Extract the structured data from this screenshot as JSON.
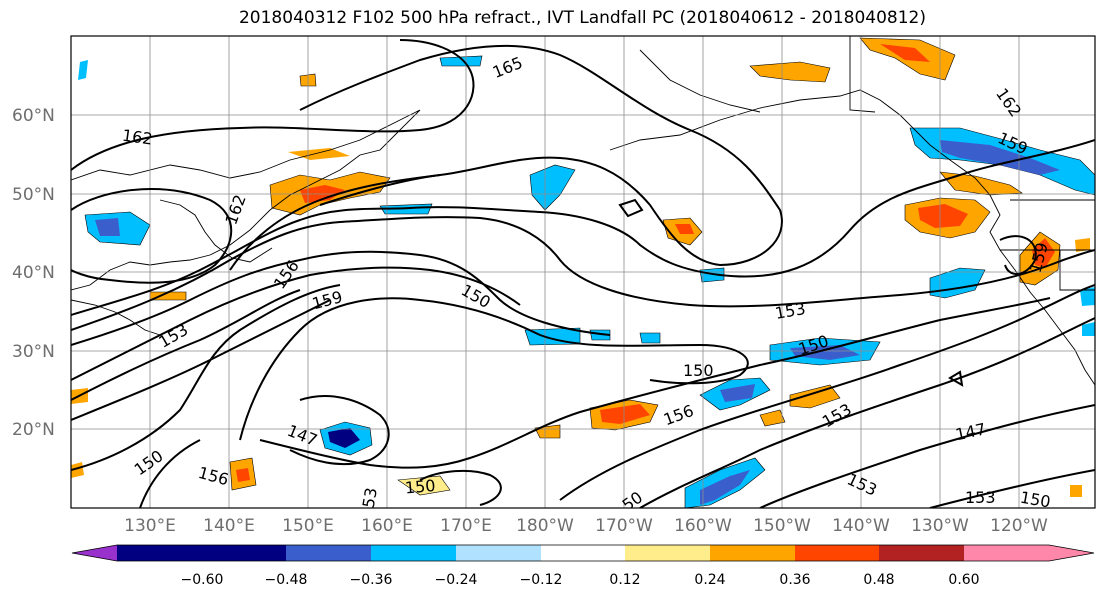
{
  "title": "2018040312 F102 500 hPa refract., IVT Landfall PC (2018040612 - 2018040812)",
  "map": {
    "lat_labels": [
      "60°N",
      "50°N",
      "40°N",
      "30°N",
      "20°N"
    ],
    "lon_labels": [
      "130°E",
      "140°E",
      "150°E",
      "160°E",
      "170°E",
      "180°W",
      "170°W",
      "160°W",
      "150°W",
      "140°W",
      "130°W",
      "120°W"
    ],
    "contour_labels": [
      "165",
      "162",
      "162",
      "159",
      "162",
      "156",
      "159",
      "150",
      "153",
      "150",
      "150",
      "153",
      "156",
      "153",
      "147",
      "147",
      "150",
      "156",
      "53",
      "150",
      "50",
      "153",
      "153",
      "150",
      "159"
    ]
  },
  "colorbar": {
    "tick_labels": [
      "−0.60",
      "−0.48",
      "−0.36",
      "−0.24",
      "−0.12",
      "0.12",
      "0.24",
      "0.36",
      "0.48",
      "0.60"
    ],
    "colors": [
      "#9932cc",
      "#000080",
      "#3a5fcd",
      "#00bfff",
      "#b0e2ff",
      "#ffffff",
      "#ffec8b",
      "#ffa500",
      "#ff4500",
      "#b22222",
      "#ff88aa"
    ]
  }
}
